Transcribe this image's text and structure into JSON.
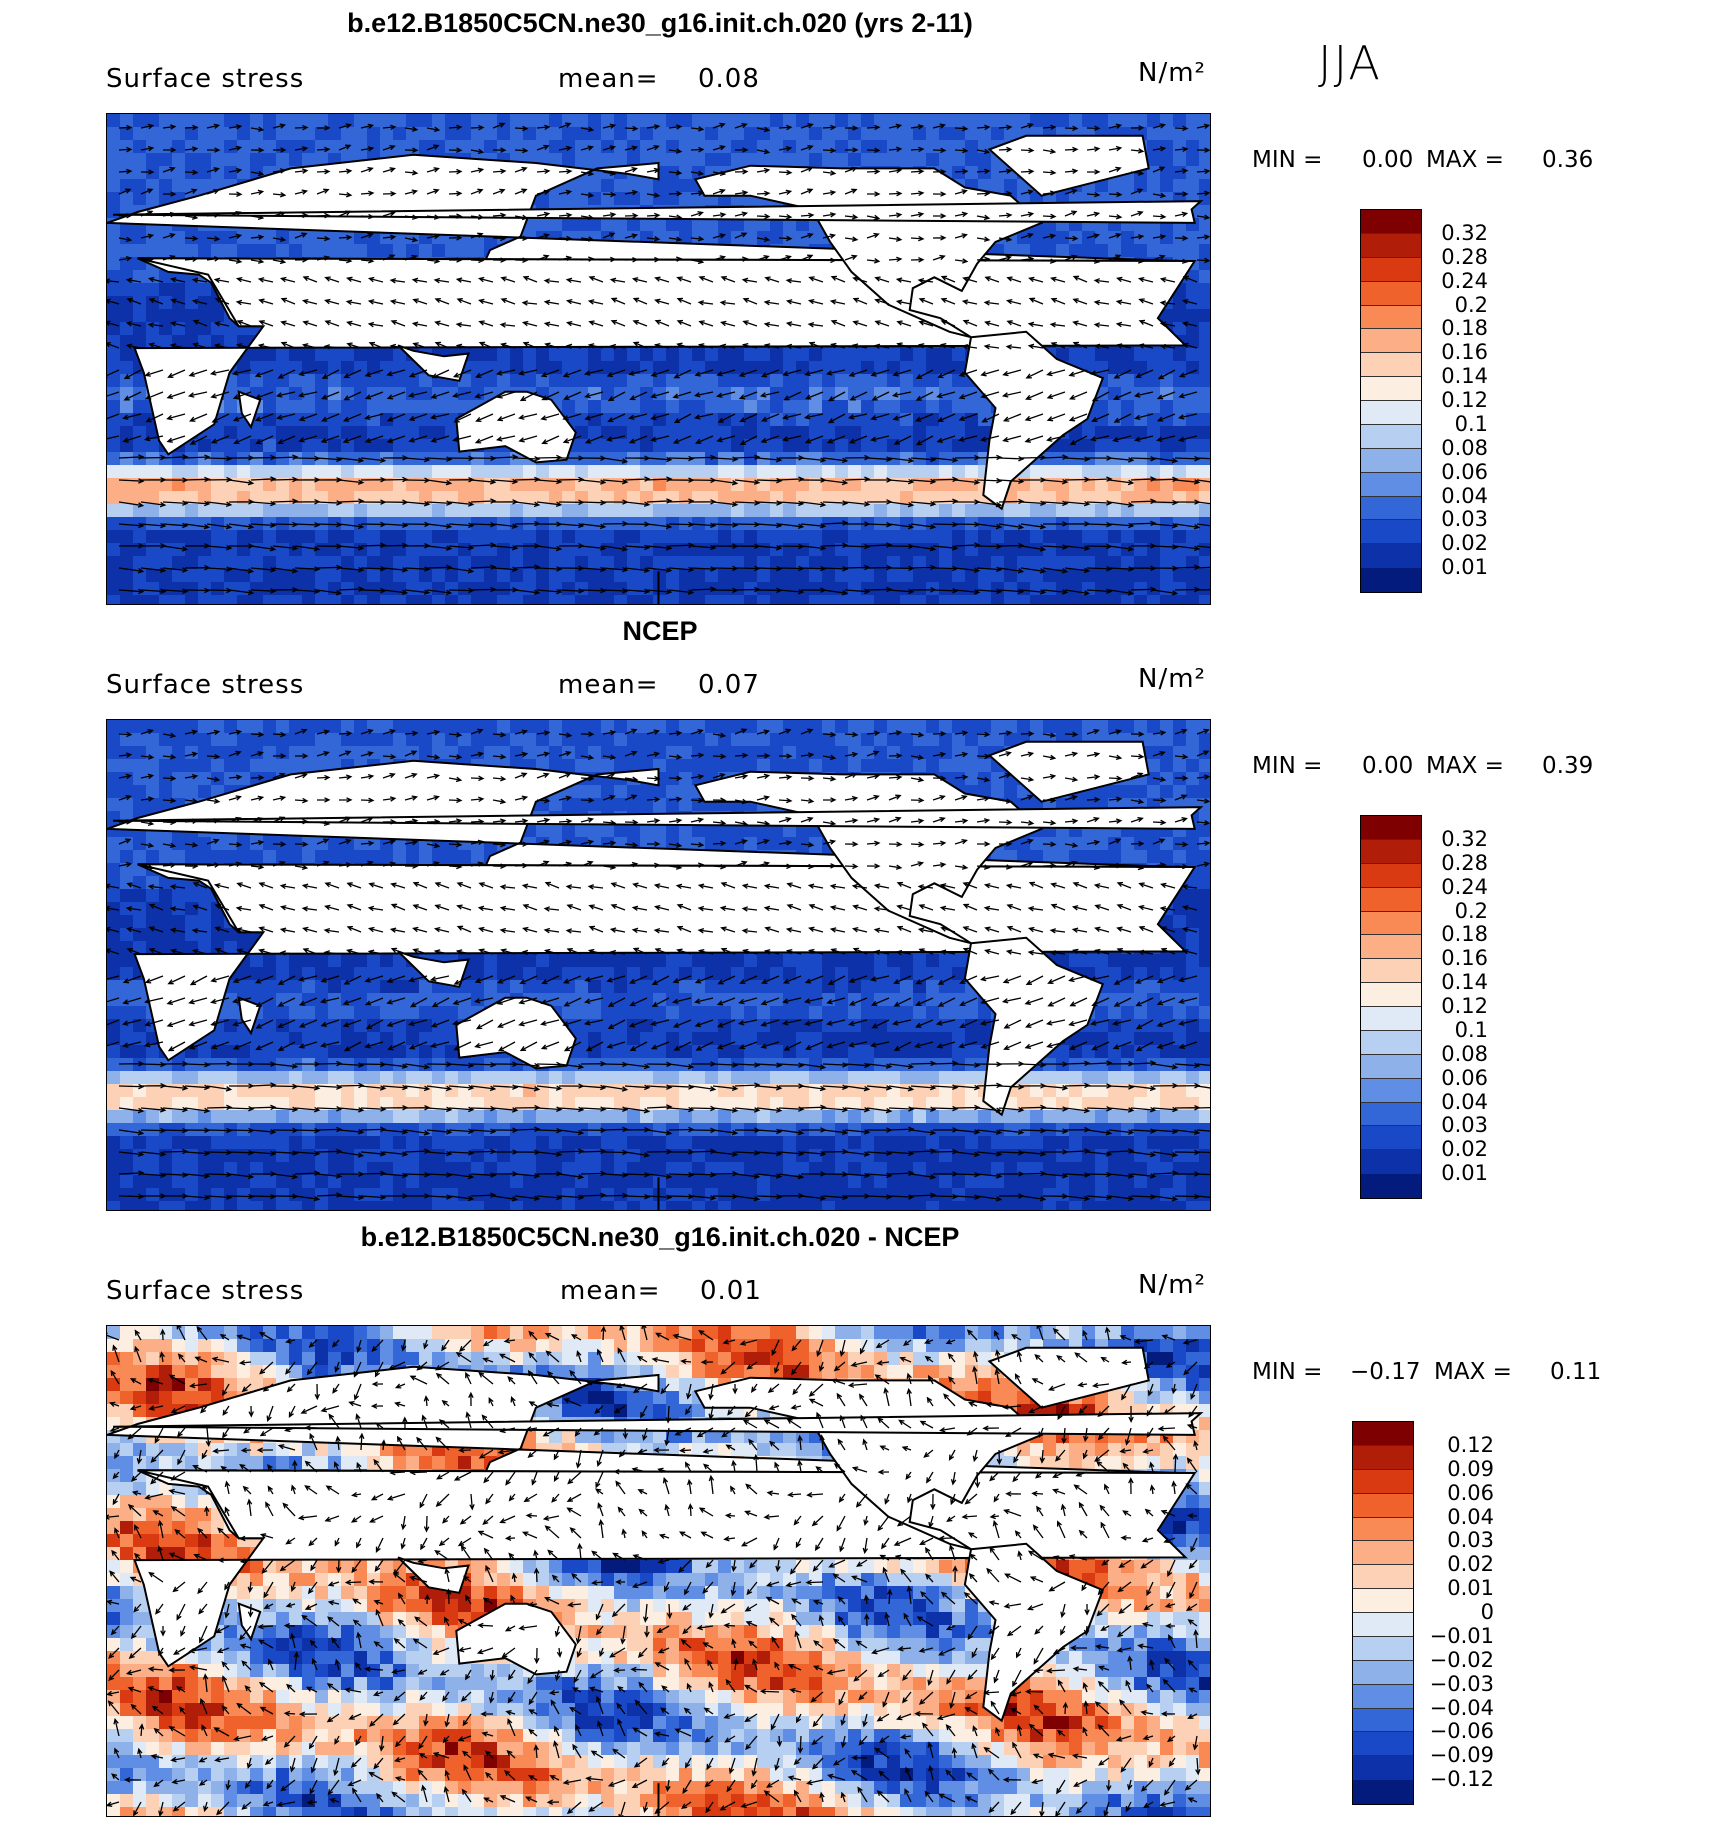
{
  "season": "JJA",
  "chart_data": [
    {
      "type": "heatmap",
      "title": "b.e12.B1850C5CN.ne30_g16.init.ch.020 (yrs 2-11)",
      "variable": "Surface stress",
      "mean_label": "mean=",
      "mean_value": "0.08",
      "units": "N/m²",
      "min_label": "MIN =",
      "min_value": "0.00",
      "max_label": "MAX =",
      "max_value": "0.36",
      "colorbar_levels": [
        "0.32",
        "0.28",
        "0.24",
        "0.2",
        "0.18",
        "0.16",
        "0.14",
        "0.12",
        "0.1",
        "0.08",
        "0.06",
        "0.04",
        "0.03",
        "0.02",
        "0.01"
      ],
      "colorbar_colors": [
        "#7f0000",
        "#b01e0a",
        "#d93a12",
        "#f0622c",
        "#fa8a55",
        "#fcae86",
        "#fdd1b5",
        "#fdeee2",
        "#dfeaf6",
        "#b7cff0",
        "#8fb1ea",
        "#5f8ee4",
        "#3367d8",
        "#1a49c8",
        "#0c31a8",
        "#041b7e"
      ]
    },
    {
      "type": "heatmap",
      "title": "NCEP",
      "variable": "Surface stress",
      "mean_label": "mean=",
      "mean_value": "0.07",
      "units": "N/m²",
      "min_label": "MIN =",
      "min_value": "0.00",
      "max_label": "MAX =",
      "max_value": "0.39",
      "colorbar_levels": [
        "0.32",
        "0.28",
        "0.24",
        "0.2",
        "0.18",
        "0.16",
        "0.14",
        "0.12",
        "0.1",
        "0.08",
        "0.06",
        "0.04",
        "0.03",
        "0.02",
        "0.01"
      ],
      "colorbar_colors": [
        "#7f0000",
        "#b01e0a",
        "#d93a12",
        "#f0622c",
        "#fa8a55",
        "#fcae86",
        "#fdd1b5",
        "#fdeee2",
        "#dfeaf6",
        "#b7cff0",
        "#8fb1ea",
        "#5f8ee4",
        "#3367d8",
        "#1a49c8",
        "#0c31a8",
        "#041b7e"
      ]
    },
    {
      "type": "heatmap",
      "title": "b.e12.B1850C5CN.ne30_g16.init.ch.020 - NCEP",
      "variable": "Surface stress",
      "mean_label": "mean=",
      "mean_value": "0.01",
      "units": "N/m²",
      "min_label": "MIN =",
      "min_value": "−0.17",
      "max_label": "MAX =",
      "max_value": "0.11",
      "colorbar_levels": [
        "0.12",
        "0.09",
        "0.06",
        "0.04",
        "0.03",
        "0.02",
        "0.01",
        "0",
        "−0.01",
        "−0.02",
        "−0.03",
        "−0.04",
        "−0.06",
        "−0.09",
        "−0.12"
      ],
      "colorbar_colors": [
        "#7f0000",
        "#b01e0a",
        "#d93a12",
        "#f0622c",
        "#fa8a55",
        "#fcae86",
        "#fdd1b5",
        "#fdeee2",
        "#dfeaf6",
        "#b7cff0",
        "#8fb1ea",
        "#5f8ee4",
        "#3367d8",
        "#1a49c8",
        "#0c31a8",
        "#041b7e"
      ]
    }
  ]
}
